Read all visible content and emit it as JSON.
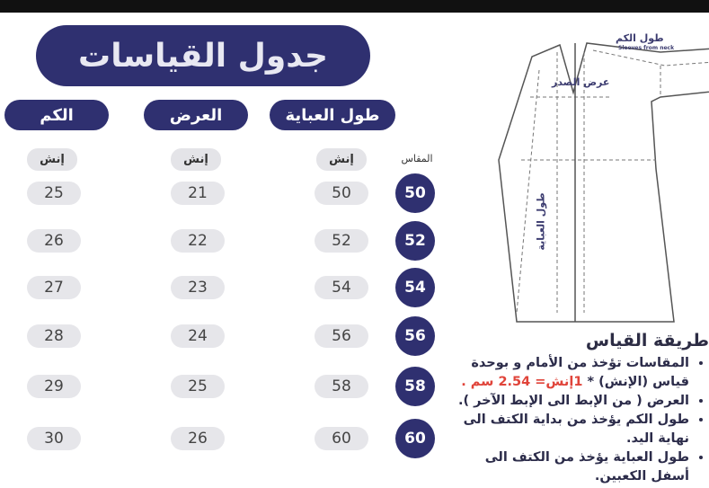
{
  "title": "جدول القياسات",
  "headers": {
    "length": "طول العباية",
    "width": "العرض",
    "sleeve": "الكم",
    "size": "المقاس"
  },
  "unit": "إنش",
  "rows": [
    {
      "size": "50",
      "length": "50",
      "width": "21",
      "sleeve": "25"
    },
    {
      "size": "52",
      "length": "52",
      "width": "22",
      "sleeve": "26"
    },
    {
      "size": "54",
      "length": "54",
      "width": "23",
      "sleeve": "27"
    },
    {
      "size": "56",
      "length": "56",
      "width": "24",
      "sleeve": "28"
    },
    {
      "size": "58",
      "length": "58",
      "width": "25",
      "sleeve": "29"
    },
    {
      "size": "60",
      "length": "60",
      "width": "26",
      "sleeve": "30"
    }
  ],
  "diagram": {
    "sleeve_label": "طول الكم",
    "sleeve_sub": "Sleeves from neck",
    "chest_label": "عرض الصدر",
    "length_label": "طول العباية"
  },
  "how_to": {
    "title": "طريقة القياس",
    "items": [
      {
        "text": "المقاسات تؤخذ من الأمام و بوحدة قياس (الإنش) * ",
        "highlight": "1إنش= 2.54 سم ."
      },
      {
        "text": "العرض ( من الإبط الى الإبط الآخر )."
      },
      {
        "text": "طول الكم يؤخذ من بداية الكتف الى نهاية اليد."
      },
      {
        "text": "طول العباية يؤخذ من الكتف الى أسفل الكعبين."
      }
    ]
  },
  "colors": {
    "navy": "#2f3070",
    "pill_gray": "#e6e6ea",
    "highlight": "#e0443a"
  }
}
